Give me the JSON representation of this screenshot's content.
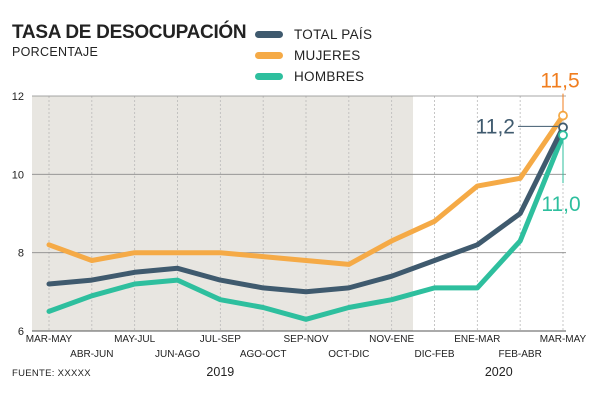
{
  "title": "TASA DE DESOCUPACIÓN",
  "subtitle": "PORCENTAJE",
  "source": "FUENTE: XXXXX",
  "chart_data": {
    "type": "line",
    "title": "TASA DE DESOCUPACIÓN",
    "ylabel": "PORCENTAJE",
    "xlabel": "",
    "ylim": [
      6,
      12
    ],
    "yticks": [
      6,
      8,
      10,
      12
    ],
    "grid": true,
    "legend_position": "top-right",
    "categories": [
      "MAR-MAY",
      "ABR-JUN",
      "MAY-JUL",
      "JUN-AGO",
      "JUL-SEP",
      "AGO-OCT",
      "SEP-NOV",
      "OCT-DIC",
      "NOV-ENE",
      "DIC-FEB",
      "ENE-MAR",
      "FEB-ABR",
      "MAR-MAY"
    ],
    "years": [
      {
        "label": "2019",
        "start": 0,
        "end": 8
      },
      {
        "label": "2020",
        "start": 9,
        "end": 12
      }
    ],
    "series": [
      {
        "name": "TOTAL PAÍS",
        "color": "#3f5a6e",
        "values": [
          7.2,
          7.3,
          7.5,
          7.6,
          7.3,
          7.1,
          7.0,
          7.1,
          7.4,
          7.8,
          8.2,
          9.0,
          11.2
        ]
      },
      {
        "name": "MUJERES",
        "color": "#f5aa46",
        "values": [
          8.2,
          7.8,
          8.0,
          8.0,
          8.0,
          7.9,
          7.8,
          7.7,
          8.3,
          8.8,
          9.7,
          9.9,
          11.5
        ]
      },
      {
        "name": "HOMBRES",
        "color": "#2ebf9e",
        "values": [
          6.5,
          6.9,
          7.2,
          7.3,
          6.8,
          6.6,
          6.3,
          6.6,
          6.8,
          7.1,
          7.1,
          8.3,
          11.0
        ]
      }
    ],
    "annotations": [
      {
        "series": "MUJERES",
        "text": "11,5",
        "color": "#f07d1e"
      },
      {
        "series": "TOTAL PAÍS",
        "text": "11,2",
        "color": "#3f5a6e"
      },
      {
        "series": "HOMBRES",
        "text": "11,0",
        "color": "#2ebf9e"
      }
    ]
  }
}
